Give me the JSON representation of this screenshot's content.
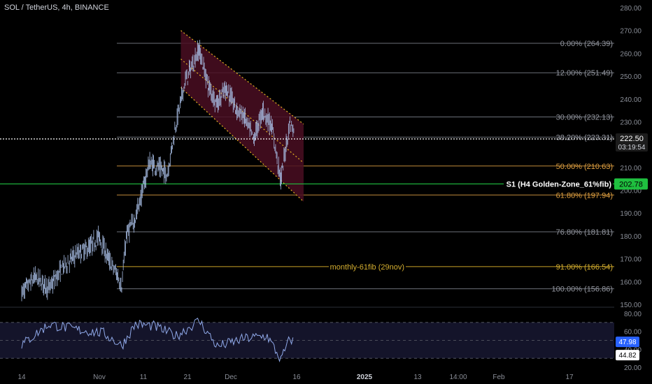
{
  "header": {
    "title": "SOL / TetherUS, 4h, BINANCE"
  },
  "colors": {
    "background": "#000000",
    "candles": "#a9bfe6",
    "fib_gray": "#6b6f78",
    "fib_orange": "#c08a3a",
    "fib_gold": "#c9a227",
    "channel_fill": "#4a0e22",
    "channel_line": "#e6b422",
    "support_green": "#1fbf3f",
    "rsi_line": "#8fa8e8",
    "rsi_bg": "#14142a",
    "axis_text": "#8a8e97",
    "price_badge": "#1c1c1c",
    "rsi_badge": "#2962ff"
  },
  "chart_data": [
    {
      "type": "candlestick",
      "title": "SOL / TetherUS, 4h, BINANCE",
      "ylim": [
        150,
        280
      ],
      "y_ticks": [
        "280.00",
        "270.00",
        "260.00",
        "250.00",
        "240.00",
        "230.00",
        "220.00",
        "210.00",
        "200.00",
        "190.00",
        "180.00",
        "170.00",
        "160.00",
        "150.00"
      ],
      "x_ticks": [
        "14",
        "Nov",
        "11",
        "21",
        "Dec",
        "16",
        "2025",
        "13",
        "14:00",
        "Feb",
        "17"
      ],
      "approx_close_path": [
        [
          "Oct 14",
          155
        ],
        [
          "Oct 17",
          162
        ],
        [
          "Oct 20",
          157
        ],
        [
          "Oct 23",
          166
        ],
        [
          "Oct 26",
          172
        ],
        [
          "Oct 29",
          175
        ],
        [
          "Oct 31",
          180
        ],
        [
          "Nov 2",
          170
        ],
        [
          "Nov 4",
          163
        ],
        [
          "Nov 5",
          158
        ],
        [
          "Nov 6",
          180
        ],
        [
          "Nov 8",
          188
        ],
        [
          "Nov 10",
          203
        ],
        [
          "Nov 11",
          212
        ],
        [
          "Nov 13",
          210
        ],
        [
          "Nov 15",
          207
        ],
        [
          "Nov 17",
          230
        ],
        [
          "Nov 19",
          248
        ],
        [
          "Nov 21",
          257
        ],
        [
          "Nov 22",
          262
        ],
        [
          "Nov 24",
          246
        ],
        [
          "Nov 26",
          238
        ],
        [
          "Nov 28",
          245
        ],
        [
          "Nov 30",
          236
        ],
        [
          "Dec 2",
          232
        ],
        [
          "Dec 4",
          222
        ],
        [
          "Dec 6",
          235
        ],
        [
          "Dec 8",
          228
        ],
        [
          "Dec 10",
          204
        ],
        [
          "Dec 11",
          218
        ],
        [
          "Dec 12",
          230
        ],
        [
          "Dec 13",
          225
        ]
      ],
      "fib_levels": [
        {
          "label": "0.00% (264.39)",
          "value": 264.39,
          "color": "gray"
        },
        {
          "label": "12.00% (251.49)",
          "value": 251.49,
          "color": "gray"
        },
        {
          "label": "30.00% (232.13)",
          "value": 232.13,
          "color": "gray"
        },
        {
          "label": "38.20% (223.31)",
          "value": 223.31,
          "color": "gray"
        },
        {
          "label": "50.00% (210.63)",
          "value": 210.63,
          "color": "orange"
        },
        {
          "label": "61.80% (197.94)",
          "value": 197.94,
          "color": "orange"
        },
        {
          "label": "76.80% (181.81)",
          "value": 181.81,
          "color": "gray"
        },
        {
          "label": "91.00% (166.54)",
          "value": 166.54,
          "color": "gold"
        },
        {
          "label": "100.00% (156.86)",
          "value": 156.86,
          "color": "gray"
        }
      ],
      "annotations": [
        {
          "text": "monthly-61fib (29nov)",
          "value": 166.54
        },
        {
          "text": "S1 (H4 Golden-Zone_61%fib)",
          "value": 202.78
        }
      ],
      "current_price": {
        "value": "222.50",
        "countdown": "03:19:54"
      },
      "support_price": "202.78",
      "channel": {
        "upper": [
          [
            "Nov 18",
            270
          ],
          [
            "Dec 15",
            229
          ]
        ],
        "lower": [
          [
            "Nov 18",
            245
          ],
          [
            "Dec 15",
            195
          ]
        ]
      }
    },
    {
      "type": "line",
      "title": "RSI",
      "ylim": [
        20,
        80
      ],
      "y_ticks": [
        "80.00",
        "60.00",
        "40.00",
        "20.00"
      ],
      "badges": [
        "47.98",
        "44.82"
      ],
      "approx_path": [
        [
          "Oct 14",
          45
        ],
        [
          "Oct 20",
          68
        ],
        [
          "Oct 26",
          62
        ],
        [
          "Nov 1",
          58
        ],
        [
          "Nov 5",
          44
        ],
        [
          "Nov 8",
          68
        ],
        [
          "Nov 12",
          66
        ],
        [
          "Nov 17",
          55
        ],
        [
          "Nov 22",
          72
        ],
        [
          "Nov 26",
          43
        ],
        [
          "Dec 2",
          52
        ],
        [
          "Dec 7",
          55
        ],
        [
          "Dec 10",
          28
        ],
        [
          "Dec 12",
          52
        ],
        [
          "Dec 13",
          48
        ]
      ]
    }
  ]
}
